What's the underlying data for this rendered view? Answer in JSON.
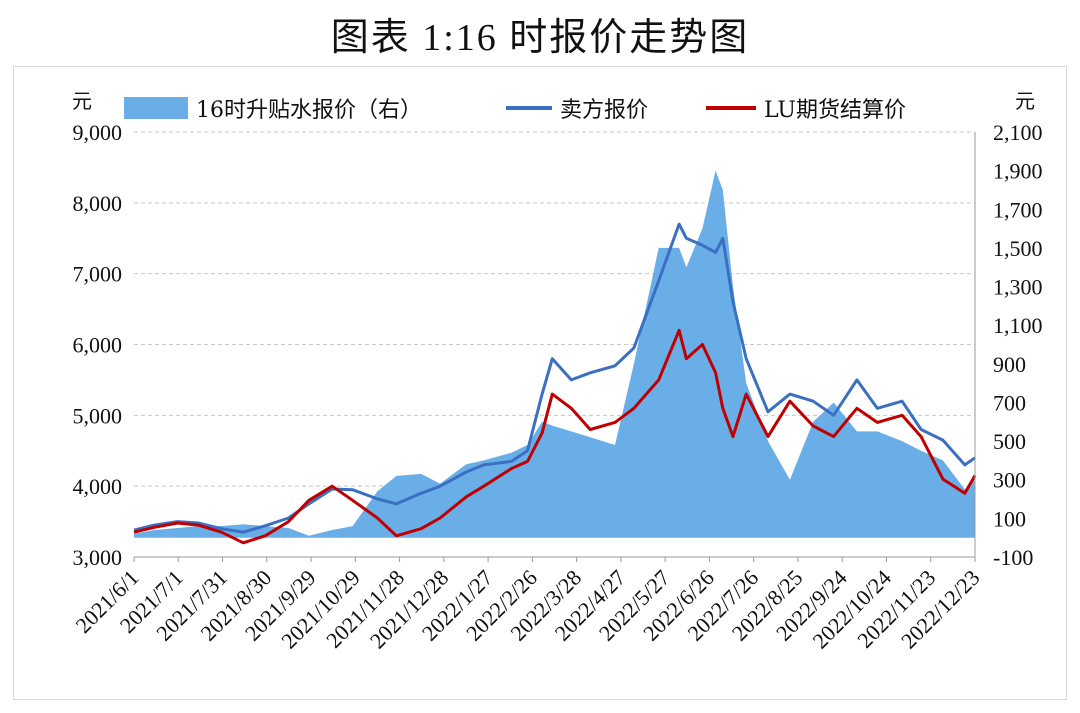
{
  "title": "图表 1:16 时报价走势图",
  "chart_data": {
    "type": "line",
    "left_axis": {
      "unit": "元",
      "range": [
        3000,
        9000
      ],
      "ticks": [
        "3,000",
        "4,000",
        "5,000",
        "6,000",
        "7,000",
        "8,000",
        "9,000"
      ]
    },
    "right_axis": {
      "unit": "元",
      "range": [
        -100,
        2100
      ],
      "ticks": [
        "-100",
        "100",
        "300",
        "500",
        "700",
        "900",
        "1,100",
        "1,300",
        "1,500",
        "1,700",
        "1,900",
        "2,100"
      ]
    },
    "x_tick_labels": [
      "2021/6/1",
      "2021/7/1",
      "2021/7/31",
      "2021/8/30",
      "2021/9/29",
      "2021/10/29",
      "2021/11/28",
      "2021/12/28",
      "2022/1/27",
      "2022/2/26",
      "2022/3/28",
      "2022/4/27",
      "2022/5/27",
      "2022/6/26",
      "2022/7/26",
      "2022/8/25",
      "2022/9/24",
      "2022/10/24",
      "2022/11/23",
      "2022/12/23"
    ],
    "legend": [
      "16时升贴水报价（右）",
      "卖方报价",
      "LU期货结算价"
    ],
    "colors": {
      "premium": "#6aaee8",
      "seller": "#3b6fc1",
      "lu": "#c00000",
      "grid": "#c8c8c8"
    },
    "x": [
      "2021/6/1",
      "2021/6/15",
      "2021/7/1",
      "2021/7/15",
      "2021/7/31",
      "2021/8/15",
      "2021/8/30",
      "2021/9/15",
      "2021/9/29",
      "2021/10/15",
      "2021/10/29",
      "2021/11/15",
      "2021/11/28",
      "2021/12/15",
      "2021/12/28",
      "2022/1/15",
      "2022/1/27",
      "2022/2/15",
      "2022/2/26",
      "2022/3/8",
      "2022/3/15",
      "2022/3/28",
      "2022/4/10",
      "2022/4/27",
      "2022/5/10",
      "2022/5/27",
      "2022/6/10",
      "2022/6/15",
      "2022/6/26",
      "2022/7/5",
      "2022/7/10",
      "2022/7/17",
      "2022/7/26",
      "2022/8/10",
      "2022/8/25",
      "2022/9/10",
      "2022/9/24",
      "2022/10/10",
      "2022/10/24",
      "2022/11/10",
      "2022/11/23",
      "2022/12/8",
      "2022/12/23",
      "2022/12/30"
    ],
    "series": [
      {
        "name": "16时升贴水报价（右）",
        "axis": "right",
        "values": [
          20,
          40,
          50,
          60,
          60,
          70,
          60,
          50,
          10,
          40,
          60,
          240,
          320,
          330,
          280,
          380,
          400,
          440,
          480,
          600,
          580,
          550,
          520,
          480,
          900,
          1500,
          1500,
          1400,
          1600,
          1900,
          1800,
          1300,
          800,
          500,
          300,
          600,
          700,
          550,
          550,
          500,
          450,
          400,
          250,
          300
        ]
      },
      {
        "name": "卖方报价",
        "axis": "left",
        "values": [
          3380,
          3450,
          3500,
          3480,
          3400,
          3350,
          3440,
          3550,
          3750,
          3960,
          3950,
          3820,
          3750,
          3900,
          4000,
          4200,
          4300,
          4350,
          4500,
          5300,
          5800,
          5500,
          5600,
          5700,
          5950,
          6900,
          7700,
          7500,
          7400,
          7300,
          7500,
          6600,
          5800,
          5050,
          5300,
          5200,
          5000,
          5500,
          5100,
          5200,
          4800,
          4650,
          4300,
          4400
        ]
      },
      {
        "name": "LU期货结算价",
        "axis": "left",
        "values": [
          3350,
          3420,
          3480,
          3450,
          3350,
          3200,
          3300,
          3500,
          3800,
          4000,
          3800,
          3550,
          3300,
          3400,
          3550,
          3850,
          4000,
          4250,
          4350,
          4750,
          5300,
          5100,
          4800,
          4900,
          5100,
          5500,
          6200,
          5800,
          6000,
          5600,
          5100,
          4700,
          5300,
          4700,
          5200,
          4850,
          4700,
          5100,
          4900,
          5000,
          4700,
          4100,
          3900,
          4150
        ]
      }
    ]
  }
}
